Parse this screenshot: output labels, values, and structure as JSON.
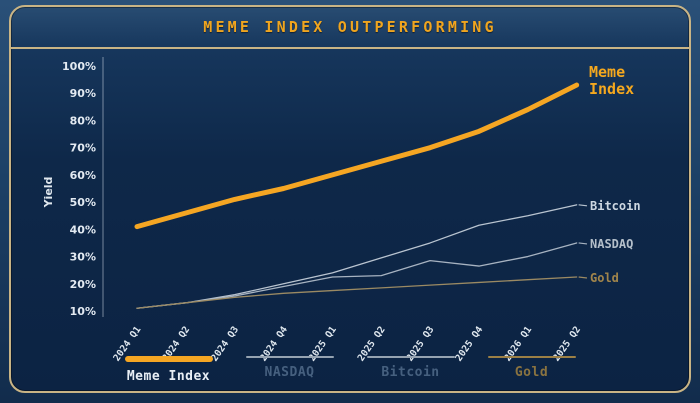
{
  "title": "MEME INDEX OUTPERFORMING",
  "colors": {
    "accent_orange": "#f5a623",
    "panel_border_tan": "#c9b485",
    "panel_bg_navy": "#0e2849",
    "outer_bg_navy": "#1c4066",
    "tick_text": "#e3eaf2",
    "thin_line_gray": "#aab8c6"
  },
  "chart_data": {
    "type": "line",
    "title": "MEME INDEX OUTPERFORMING",
    "xlabel": "",
    "ylabel": "Yield",
    "ylim": [
      10,
      100
    ],
    "grid": false,
    "legend_position": "bottom",
    "ytick_values": [
      100,
      90,
      80,
      70,
      60,
      50,
      40,
      30,
      20,
      10
    ],
    "ytick_labels": [
      "100%",
      "90%",
      "80%",
      "70%",
      "60%",
      "50%",
      "40%",
      "30%",
      "20%",
      "10%"
    ],
    "categories": [
      "2024 Q1",
      "2024 Q2",
      "2024 Q3",
      "2024 Q4",
      "2025 Q1",
      "2025 Q2",
      "2025 Q3",
      "2025 Q4",
      "2026 Q1",
      "2025 Q2"
    ],
    "series": [
      {
        "name": "Bitcoin",
        "color": "#b9c4d0",
        "width": 1.3,
        "values": [
          11,
          13,
          16,
          20,
          24,
          29.5,
          35,
          41.5,
          45,
          49
        ],
        "end_label": [
          "Bitcoin"
        ],
        "label_color": "#cdd7e1",
        "leader": true
      },
      {
        "name": "NASDAQ",
        "color": "#a7b3c1",
        "width": 1.3,
        "values": [
          11,
          13,
          15.5,
          19,
          22.5,
          23,
          28.5,
          26.5,
          30,
          35
        ],
        "end_label": [
          "NASDAQ"
        ],
        "label_color": "#b4bfca",
        "leader": true
      },
      {
        "name": "Gold",
        "color": "#9b8a63",
        "width": 1.3,
        "values": [
          11,
          13,
          15,
          16.5,
          17.5,
          18.5,
          19.5,
          20.5,
          21.5,
          22.5
        ],
        "end_label": [
          "Gold"
        ],
        "label_color": "#a1854b",
        "leader": true
      },
      {
        "name": "Meme Index",
        "color": "#f5a623",
        "width": 5,
        "values": [
          41,
          46,
          51,
          55,
          60,
          65,
          70,
          76,
          84,
          93
        ],
        "end_label": [
          "Meme",
          "Index"
        ],
        "label_color": "#f5a81e",
        "leader": false
      }
    ]
  },
  "legend": {
    "items": [
      {
        "label": "Meme Index",
        "color": "#f5a623",
        "thick": true,
        "text_color": "#e8eef5"
      },
      {
        "label": "NASDAQ",
        "color": "#96a3b1",
        "thick": false,
        "text_color": "#46607f"
      },
      {
        "label": "Bitcoin",
        "color": "#96a3b1",
        "thick": false,
        "text_color": "#46607f"
      },
      {
        "label": "Gold",
        "color": "#9c8045",
        "thick": false,
        "text_color": "#8a7340"
      }
    ]
  }
}
